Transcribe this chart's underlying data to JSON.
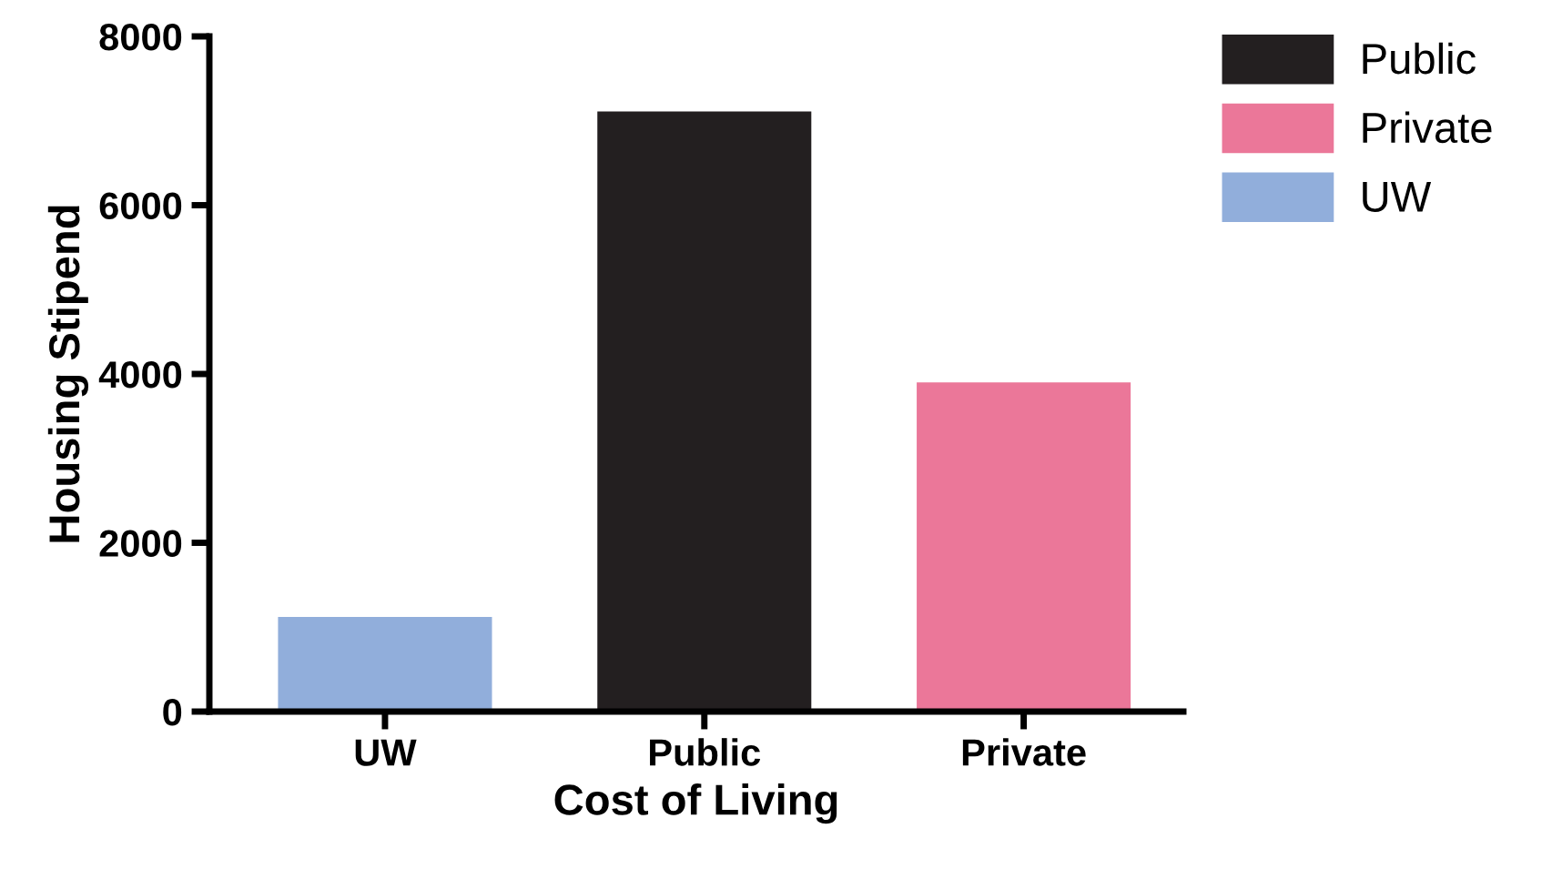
{
  "chart_data": {
    "type": "bar",
    "xlabel": "Cost of Living",
    "ylabel": "Housing Stipend",
    "categories": [
      "UW",
      "Public",
      "Private"
    ],
    "series": [
      {
        "name": "Public",
        "color": "#231f20",
        "values": [
          null,
          7110,
          null
        ]
      },
      {
        "name": "Private",
        "color": "#eb7799",
        "values": [
          null,
          null,
          3900
        ]
      },
      {
        "name": "UW",
        "color": "#91aedb",
        "values": [
          1120,
          null,
          null
        ]
      }
    ],
    "ylim": [
      0,
      8000
    ],
    "yticks": [
      0,
      2000,
      4000,
      6000,
      8000
    ],
    "grid": false,
    "legend": "top right"
  }
}
